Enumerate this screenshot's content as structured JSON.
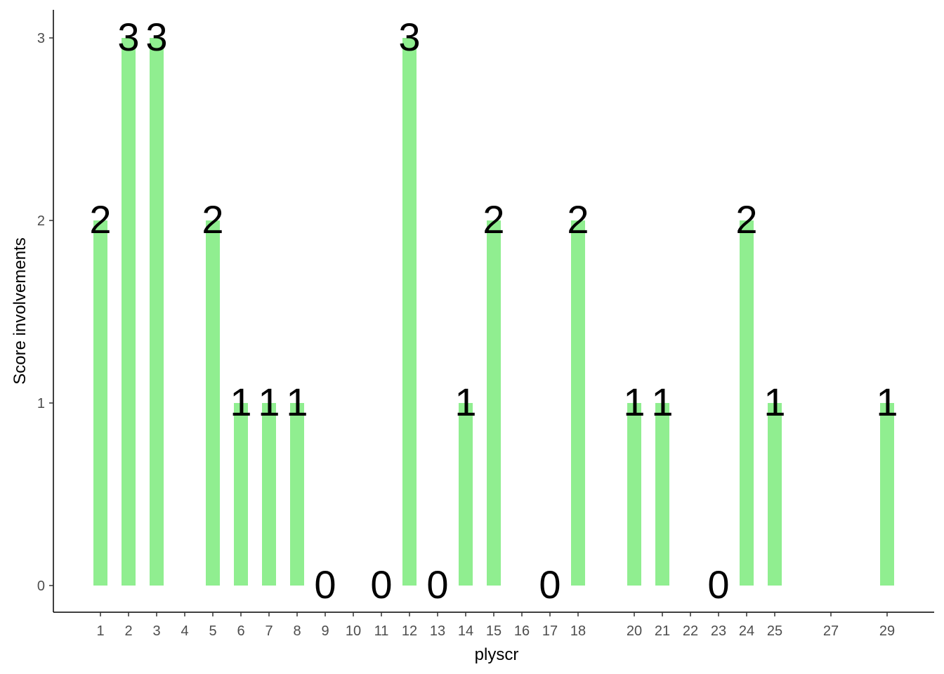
{
  "chart_data": {
    "type": "bar",
    "title": "",
    "xlabel": "plyscr",
    "ylabel": "Score involvements",
    "x_ticks": [
      "1",
      "2",
      "3",
      "4",
      "5",
      "6",
      "7",
      "8",
      "9",
      "10",
      "11",
      "12",
      "13",
      "14",
      "15",
      "16",
      "17",
      "18",
      "20",
      "21",
      "22",
      "23",
      "24",
      "25",
      "27",
      "29"
    ],
    "y_ticks": [
      0,
      1,
      2,
      3
    ],
    "ylim": [
      0,
      3
    ],
    "x": [
      1,
      2,
      3,
      5,
      6,
      7,
      8,
      9,
      11,
      12,
      13,
      14,
      15,
      17,
      18,
      20,
      21,
      23,
      24,
      25,
      29
    ],
    "values": [
      2,
      3,
      3,
      2,
      1,
      1,
      1,
      0,
      0,
      3,
      0,
      1,
      2,
      0,
      2,
      1,
      1,
      0,
      2,
      1,
      1
    ],
    "labels": [
      "2",
      "3",
      "3",
      "2",
      "1",
      "1",
      "1",
      "0",
      "0",
      "3",
      "0",
      "1",
      "2",
      "0",
      "2",
      "1",
      "1",
      "0",
      "2",
      "1",
      "1"
    ],
    "grid": false,
    "bar_color": "#90EE90",
    "axis_color": "#000000",
    "tick_label_color": "#4d4d4d"
  }
}
